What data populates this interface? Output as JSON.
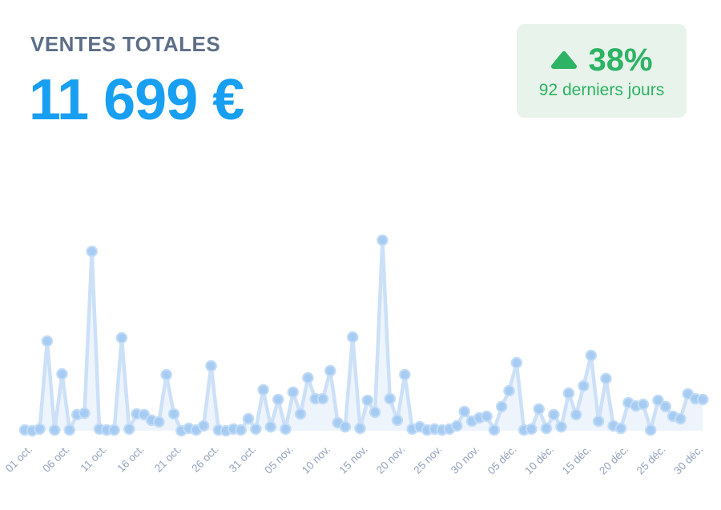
{
  "header": {
    "title": "VENTES TOTALES",
    "total": "11 699 €"
  },
  "badge": {
    "trend_icon": "trend-up-triangle-icon",
    "percent": "38%",
    "period": "92 derniers jours"
  },
  "colors": {
    "title_color": "#5d6e87",
    "accent_blue": "#189ff2",
    "badge_bg": "#e7f3eb",
    "green": "#2db363",
    "chart_line": "#cce0f8",
    "chart_marker": "#a2c9f1",
    "chart_marker_edge": "#c3dcf7",
    "chart_area": "rgba(199,220,245,0.30)",
    "axis_label": "#93a2be"
  },
  "chart_data": {
    "type": "line",
    "unit": "€",
    "num_points": 92,
    "tick_step": 5,
    "x_tick_labels": [
      "01 oct.",
      "06 oct.",
      "11 oct.",
      "16 oct.",
      "21 oct.",
      "26 oct.",
      "31 oct.",
      "05 nov.",
      "10 nov.",
      "15 nov.",
      "20 nov.",
      "25 nov.",
      "30 nov.",
      "05 déc.",
      "10 déc.",
      "15 déc.",
      "20 déc.",
      "25 déc.",
      "30 déc."
    ],
    "y_min": 0,
    "y_max": 1020,
    "grid": false,
    "markers": true,
    "legend": null,
    "total_of_values": 11699,
    "values": [
      4,
      0,
      9,
      480,
      4,
      304,
      4,
      86,
      94,
      960,
      9,
      4,
      4,
      497,
      9,
      90,
      86,
      56,
      47,
      300,
      90,
      0,
      13,
      4,
      26,
      347,
      4,
      0,
      9,
      4,
      64,
      9,
      219,
      21,
      167,
      9,
      206,
      90,
      283,
      171,
      171,
      321,
      43,
      21,
      501,
      13,
      163,
      99,
      1020,
      171,
      56,
      300,
      9,
      21,
      4,
      9,
      4,
      9,
      26,
      103,
      51,
      69,
      77,
      4,
      129,
      214,
      364,
      4,
      9,
      116,
      13,
      86,
      21,
      201,
      86,
      240,
      403,
      51,
      279,
      26,
      13,
      150,
      133,
      141,
      4,
      163,
      129,
      77,
      64,
      197,
      171,
      167
    ]
  }
}
